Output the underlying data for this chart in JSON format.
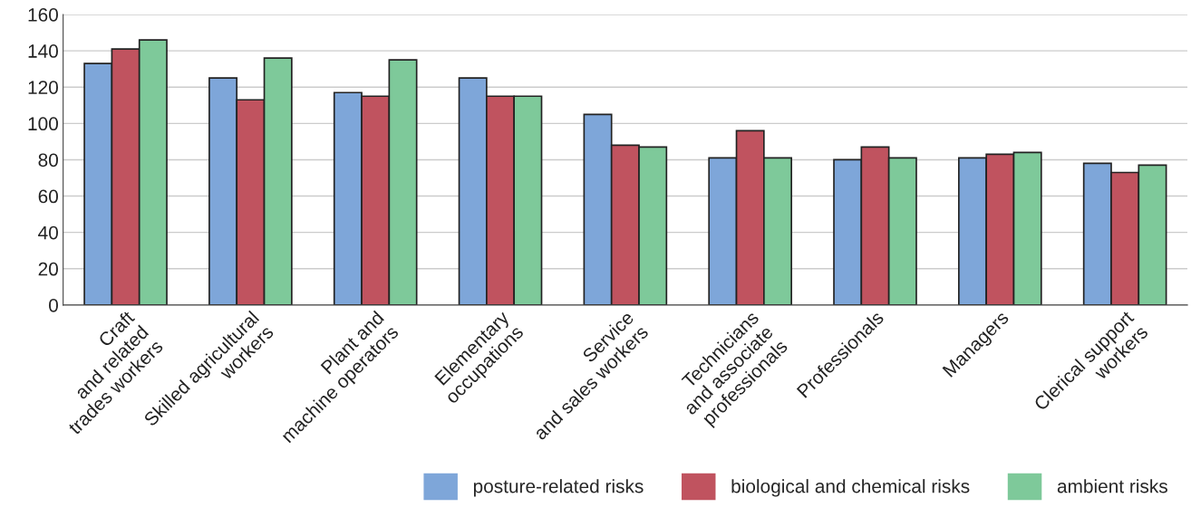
{
  "chart_data": {
    "type": "bar",
    "categories": [
      "Craft\nand related\ntrades workers",
      "Skilled agricultural\nworkers",
      "Plant and\nmachine operators",
      "Elementary\noccupations",
      "Service\nand sales workers",
      "Technicians\nand associate\nprofessionals",
      "Professionals",
      "Managers",
      "Clerical support\nworkers"
    ],
    "series": [
      {
        "name": "posture-related risks",
        "color": "#7ea6d9",
        "values": [
          133,
          125,
          117,
          125,
          105,
          81,
          80,
          81,
          78
        ]
      },
      {
        "name": "biological and chemical risks",
        "color": "#c0535f",
        "values": [
          141,
          113,
          115,
          115,
          88,
          96,
          87,
          83,
          73
        ]
      },
      {
        "name": "ambient risks",
        "color": "#7ec99a",
        "values": [
          146,
          136,
          135,
          115,
          87,
          81,
          81,
          84,
          77
        ]
      }
    ],
    "ylim": [
      0,
      160
    ],
    "yticks": [
      0,
      20,
      40,
      60,
      80,
      100,
      120,
      140,
      160
    ],
    "grid": "y",
    "legend": "bottom right"
  }
}
